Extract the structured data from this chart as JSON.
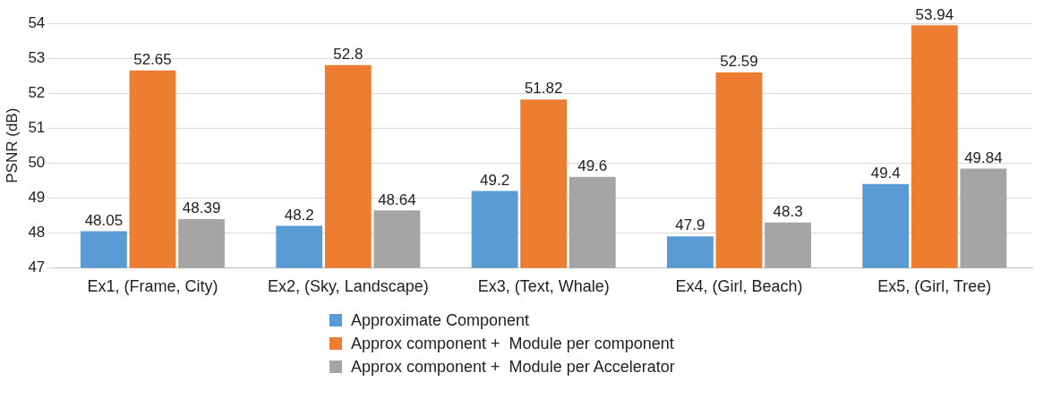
{
  "chart_data": {
    "type": "bar",
    "ylabel": "PSNR (dB)",
    "categories": [
      "Ex1, (Frame, City)",
      "Ex2, (Sky, Landscape)",
      "Ex3, (Text, Whale)",
      "Ex4, (Girl, Beach)",
      "Ex5, (Girl, Tree)"
    ],
    "series": [
      {
        "name": "Approximate Component",
        "color": "#5b9bd5",
        "values": [
          48.05,
          48.2,
          49.2,
          47.9,
          49.4
        ]
      },
      {
        "name": "Approx component +  Module per component",
        "color": "#ed7d31",
        "values": [
          52.65,
          52.8,
          51.82,
          52.59,
          53.94
        ]
      },
      {
        "name": "Approx component +  Module per Accelerator",
        "color": "#a5a5a5",
        "values": [
          48.39,
          48.64,
          49.6,
          48.3,
          49.84
        ]
      }
    ],
    "ylim": [
      47,
      54
    ],
    "yticks": [
      47,
      48,
      49,
      50,
      51,
      52,
      53,
      54
    ],
    "grid": "y",
    "legend": "bottom",
    "data_labels": true
  }
}
